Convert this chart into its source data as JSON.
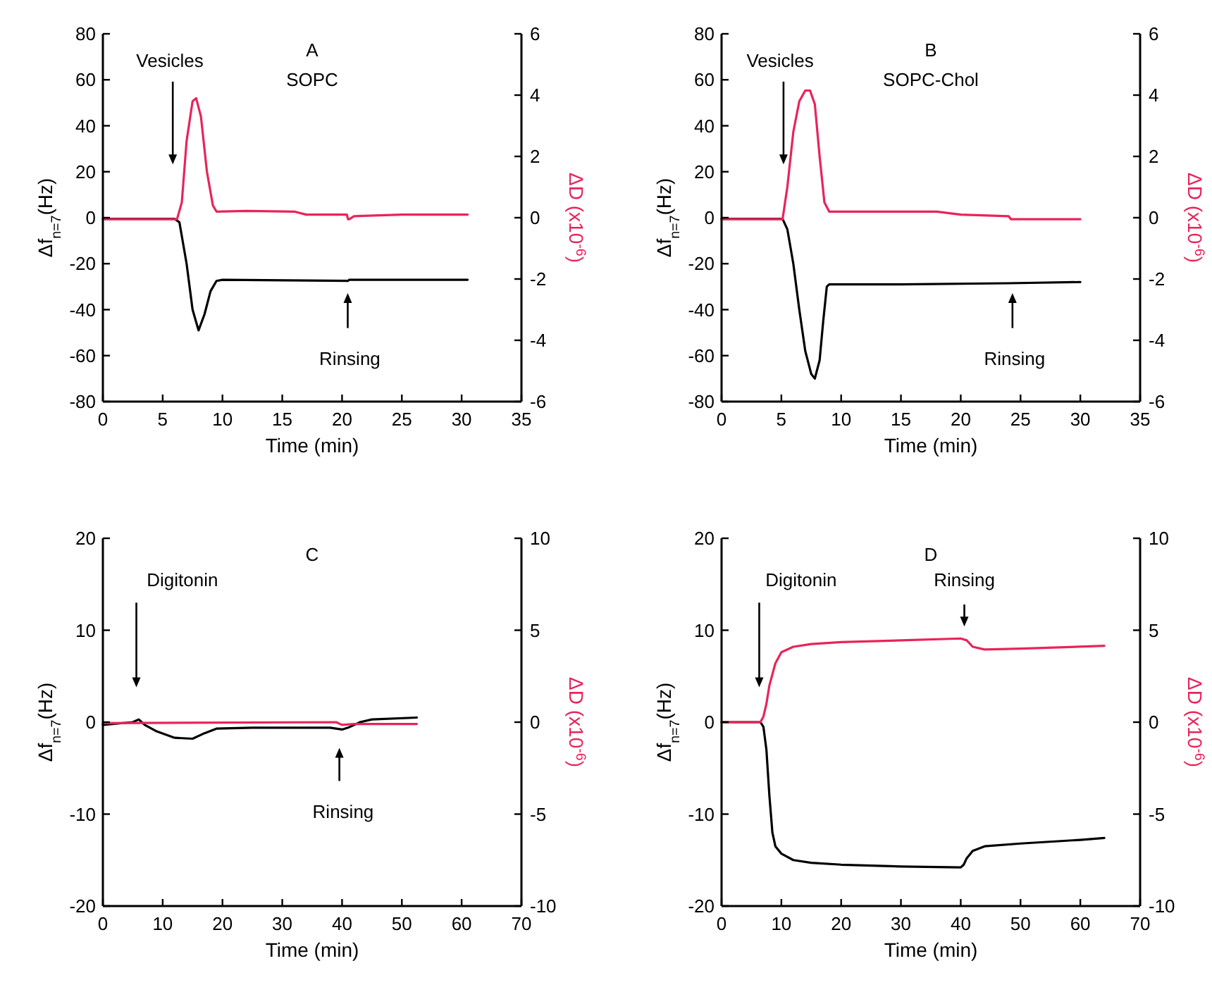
{
  "chart_data": [
    {
      "type": "line",
      "title": "A",
      "subtitle": "SOPC",
      "xlabel": "Time (min)",
      "ylabel": "Δf$_{n=7}$(Hz)",
      "y2label": "ΔD (x10$^{-6}$)",
      "xlim": [
        0,
        35
      ],
      "xticks": [
        0,
        5,
        10,
        15,
        20,
        25,
        30,
        35
      ],
      "ylim": [
        -80,
        80
      ],
      "yticks": [
        -80,
        -60,
        -40,
        -20,
        0,
        20,
        40,
        60,
        80
      ],
      "y2lim": [
        -6,
        6
      ],
      "y2ticks": [
        -6,
        -4,
        -2,
        0,
        2,
        4,
        6
      ],
      "grid": false,
      "line_style": "solid",
      "annotations": [
        "Vesicles",
        "Rinsing"
      ],
      "series": [
        {
          "color": "#000000",
          "x": [
            0,
            6,
            6.4,
            7,
            7.5,
            8,
            8.5,
            9,
            9.5,
            10,
            20.5,
            20.6,
            30.5
          ],
          "values": [
            -0.5,
            -0.5,
            -2,
            -20,
            -40,
            -49,
            -42,
            -32,
            -27.5,
            -27,
            -27.5,
            -27,
            -27
          ]
        },
        {
          "color": "#e8245a",
          "axis": "y2",
          "x": [
            0,
            6.2,
            6.6,
            7,
            7.5,
            7.8,
            8.2,
            8.7,
            9.2,
            9.5,
            12,
            16,
            17,
            20.4,
            20.5,
            20.6,
            21,
            25,
            30.5
          ],
          "values": [
            -0.05,
            -0.05,
            0.5,
            2.5,
            3.8,
            3.9,
            3.3,
            1.5,
            0.4,
            0.2,
            0.22,
            0.2,
            0.1,
            0.1,
            -0.05,
            -0.05,
            0.05,
            0.1,
            0.1
          ]
        }
      ]
    },
    {
      "type": "line",
      "title": "B",
      "subtitle": "SOPC-Chol",
      "xlabel": "Time (min)",
      "ylabel": "Δf$_{n=7}$(Hz)",
      "y2label": "ΔD (x10$^{-6}$)",
      "xlim": [
        0,
        35
      ],
      "xticks": [
        0,
        5,
        10,
        15,
        20,
        25,
        30,
        35
      ],
      "ylim": [
        -80,
        80
      ],
      "yticks": [
        -80,
        -60,
        -40,
        -20,
        0,
        20,
        40,
        60,
        80
      ],
      "y2lim": [
        -6,
        6
      ],
      "y2ticks": [
        -6,
        -4,
        -2,
        0,
        2,
        4,
        6
      ],
      "grid": false,
      "line_style": "solid",
      "annotations": [
        "Vesicles",
        "Rinsing"
      ],
      "series": [
        {
          "color": "#000000",
          "x": [
            0,
            5.1,
            5.5,
            6,
            6.5,
            7,
            7.5,
            7.8,
            8.2,
            8.5,
            8.8,
            9,
            15,
            24,
            30
          ],
          "values": [
            -0.5,
            -0.5,
            -5,
            -20,
            -40,
            -58,
            -68,
            -70,
            -62,
            -45,
            -30,
            -29,
            -29,
            -28.5,
            -28
          ]
        },
        {
          "color": "#e8245a",
          "axis": "y2",
          "x": [
            0,
            5.1,
            5.5,
            6,
            6.5,
            7,
            7.4,
            7.8,
            8.2,
            8.6,
            9,
            18,
            20,
            24,
            24.2,
            30
          ],
          "values": [
            -0.05,
            -0.05,
            1,
            2.8,
            3.8,
            4.15,
            4.15,
            3.7,
            2,
            0.5,
            0.2,
            0.2,
            0.1,
            0.05,
            -0.05,
            -0.05
          ]
        }
      ]
    },
    {
      "type": "line",
      "title": "C",
      "xlabel": "Time (min)",
      "ylabel": "Δf$_{n=7}$(Hz)",
      "y2label": "ΔD (x10$^{-6}$)",
      "xlim": [
        0,
        70
      ],
      "xticks": [
        0,
        10,
        20,
        30,
        40,
        50,
        60,
        70
      ],
      "ylim": [
        -20,
        20
      ],
      "yticks": [
        -20,
        -10,
        0,
        10,
        20
      ],
      "y2lim": [
        -10,
        10
      ],
      "y2ticks": [
        -10,
        -5,
        0,
        5,
        10
      ],
      "grid": false,
      "line_style": "solid",
      "annotations": [
        "Digitonin",
        "Rinsing"
      ],
      "series": [
        {
          "color": "#000000",
          "x": [
            0,
            5,
            6,
            7,
            9,
            12,
            15,
            17,
            19,
            25,
            38,
            40,
            41,
            43,
            45,
            52.5
          ],
          "values": [
            -0.3,
            0,
            0.3,
            -0.3,
            -1,
            -1.7,
            -1.8,
            -1.2,
            -0.7,
            -0.6,
            -0.6,
            -0.8,
            -0.6,
            0,
            0.3,
            0.5
          ]
        },
        {
          "color": "#e8245a",
          "axis": "y2",
          "x": [
            0,
            39,
            40,
            42,
            52.5
          ],
          "values": [
            -0.05,
            0,
            -0.15,
            -0.1,
            -0.1
          ]
        }
      ]
    },
    {
      "type": "line",
      "title": "D",
      "xlabel": "Time (min)",
      "ylabel": "Δf$_{n=7}$(Hz)",
      "y2label": "ΔD (x10$^{-6}$)",
      "xlim": [
        0,
        70
      ],
      "xticks": [
        0,
        10,
        20,
        30,
        40,
        50,
        60,
        70
      ],
      "ylim": [
        -20,
        20
      ],
      "yticks": [
        -20,
        -10,
        0,
        10,
        20
      ],
      "y2lim": [
        -10,
        10
      ],
      "y2ticks": [
        -10,
        -5,
        0,
        5,
        10
      ],
      "grid": false,
      "line_style": "solid",
      "annotations": [
        "Digitonin",
        "Rinsing"
      ],
      "series": [
        {
          "color": "#000000",
          "x": [
            0,
            6.5,
            7,
            7.5,
            8,
            8.5,
            9,
            10,
            12,
            15,
            20,
            30,
            40,
            40.5,
            41,
            42,
            44,
            50,
            60,
            64
          ],
          "values": [
            0,
            0,
            -0.5,
            -3,
            -8,
            -12,
            -13.5,
            -14.3,
            -15,
            -15.3,
            -15.5,
            -15.7,
            -15.8,
            -15.5,
            -14.8,
            -14,
            -13.5,
            -13.2,
            -12.8,
            -12.6
          ]
        },
        {
          "color": "#e8245a",
          "axis": "y2",
          "x": [
            0,
            6.5,
            7,
            7.5,
            8,
            9,
            10,
            12,
            15,
            20,
            30,
            40,
            41,
            42,
            44,
            50,
            64
          ],
          "values": [
            0,
            0,
            0.3,
            1,
            2,
            3.2,
            3.8,
            4.1,
            4.25,
            4.35,
            4.45,
            4.55,
            4.45,
            4.1,
            3.95,
            4.0,
            4.15
          ]
        }
      ]
    }
  ]
}
